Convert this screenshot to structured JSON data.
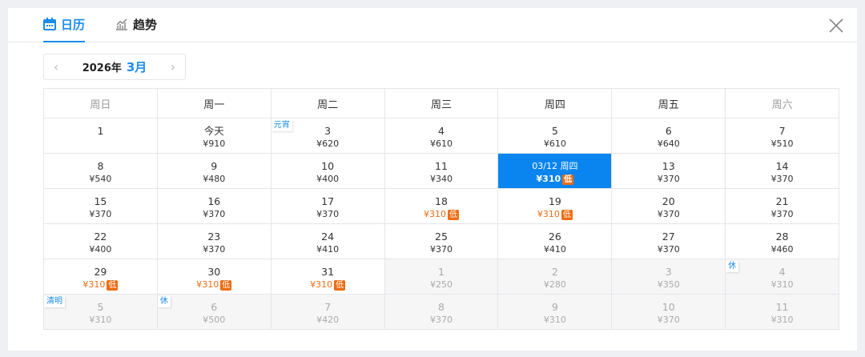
{
  "tabs": [
    {
      "label": "日历",
      "icon": "calendar-icon",
      "active": true
    },
    {
      "label": "趋势",
      "icon": "trend-chart-icon",
      "active": false
    }
  ],
  "nav": {
    "year": "2026年",
    "month": "3月"
  },
  "weekdays": [
    "周日",
    "周一",
    "周二",
    "周三",
    "周四",
    "周五",
    "周六"
  ],
  "low_label": "低",
  "colors": {
    "accent": "#1a8cef",
    "selected": "#0a85f0",
    "low": "#ef6c12"
  },
  "days": [
    {
      "label": "1"
    },
    {
      "label": "今天",
      "price": "¥910"
    },
    {
      "label": "3",
      "price": "¥620",
      "tag": "元宵"
    },
    {
      "label": "4",
      "price": "¥610"
    },
    {
      "label": "5",
      "price": "¥610"
    },
    {
      "label": "6",
      "price": "¥640"
    },
    {
      "label": "7",
      "price": "¥510"
    },
    {
      "label": "8",
      "price": "¥540"
    },
    {
      "label": "9",
      "price": "¥480"
    },
    {
      "label": "10",
      "price": "¥400"
    },
    {
      "label": "11",
      "price": "¥340"
    },
    {
      "label": "03/12 周四",
      "price": "¥310",
      "low": true,
      "selected": true
    },
    {
      "label": "13",
      "price": "¥370"
    },
    {
      "label": "14",
      "price": "¥370"
    },
    {
      "label": "15",
      "price": "¥370"
    },
    {
      "label": "16",
      "price": "¥370"
    },
    {
      "label": "17",
      "price": "¥370"
    },
    {
      "label": "18",
      "price": "¥310",
      "low": true
    },
    {
      "label": "19",
      "price": "¥310",
      "low": true
    },
    {
      "label": "20",
      "price": "¥370"
    },
    {
      "label": "21",
      "price": "¥370"
    },
    {
      "label": "22",
      "price": "¥400"
    },
    {
      "label": "23",
      "price": "¥370"
    },
    {
      "label": "24",
      "price": "¥410"
    },
    {
      "label": "25",
      "price": "¥370"
    },
    {
      "label": "26",
      "price": "¥410"
    },
    {
      "label": "27",
      "price": "¥370"
    },
    {
      "label": "28",
      "price": "¥460"
    },
    {
      "label": "29",
      "price": "¥310",
      "low": true
    },
    {
      "label": "30",
      "price": "¥310",
      "low": true
    },
    {
      "label": "31",
      "price": "¥310",
      "low": true
    },
    {
      "label": "1",
      "price": "¥250",
      "other": true
    },
    {
      "label": "2",
      "price": "¥280",
      "other": true
    },
    {
      "label": "3",
      "price": "¥350",
      "other": true
    },
    {
      "label": "4",
      "price": "¥310",
      "other": true,
      "tag": "休"
    },
    {
      "label": "5",
      "price": "¥310",
      "other": true,
      "tag": "清明"
    },
    {
      "label": "6",
      "price": "¥500",
      "other": true,
      "tag": "休"
    },
    {
      "label": "7",
      "price": "¥420",
      "other": true
    },
    {
      "label": "8",
      "price": "¥370",
      "other": true
    },
    {
      "label": "9",
      "price": "¥310",
      "other": true
    },
    {
      "label": "10",
      "price": "¥370",
      "other": true
    },
    {
      "label": "11",
      "price": "¥310",
      "other": true
    }
  ]
}
